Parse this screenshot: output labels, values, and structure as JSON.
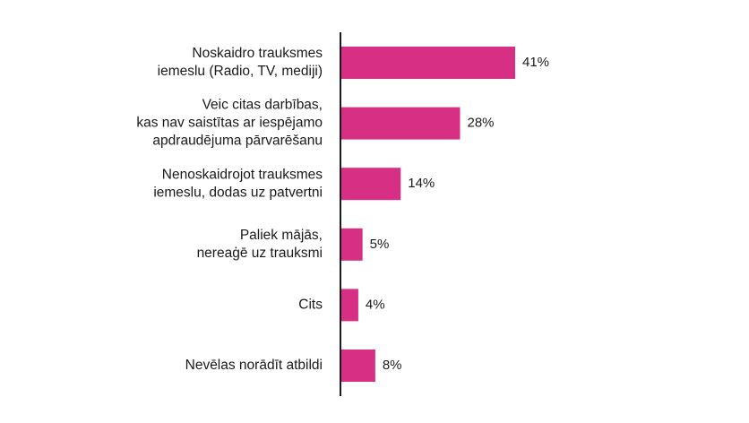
{
  "chart_data": {
    "type": "bar",
    "orientation": "horizontal",
    "title": "",
    "xlabel": "",
    "ylabel": "",
    "categories": [
      [
        "Noskaidro trauksmes",
        "iemeslu (Radio, TV, mediji)"
      ],
      [
        "Veic citas darbības,",
        "kas nav saistītas ar iespējamo",
        "apdraudējuma pārvarēšanu"
      ],
      [
        "Nenoskaidrojot trauksmes",
        "iemeslu, dodas uz patvertni"
      ],
      [
        "Paliek mājās,",
        "nereaģē uz trauksmi"
      ],
      [
        "Cits"
      ],
      [
        "Nevēlas norādīt atbildi"
      ]
    ],
    "values": [
      41,
      28,
      14,
      5,
      4,
      8
    ],
    "value_labels": [
      "41%",
      "28%",
      "14%",
      "5%",
      "4%",
      "8%"
    ],
    "unit": "%",
    "xlim": [
      0,
      41
    ],
    "grid": false,
    "legend": "none",
    "colors": {
      "bar": "#d62f84",
      "axis": "#1a1a1a",
      "text": "#1a1a1a"
    }
  }
}
